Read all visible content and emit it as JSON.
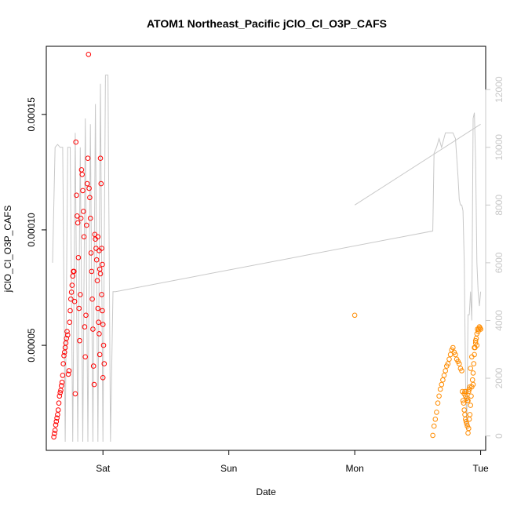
{
  "chart_data": {
    "type": "scatter",
    "title": "ATOM1 Northeast_Pacific jClO_Cl_O3P_CAFS",
    "xlabel": "Date",
    "ylabel": "jClO_Cl_O3P_CAFS",
    "x_ticks": [
      "Sat",
      "Sun",
      "Mon",
      "Tue"
    ],
    "x_tick_days": [
      1,
      2,
      3,
      4
    ],
    "xlim_days": [
      0.55,
      4.04
    ],
    "y_ticks": [
      "0.00005",
      "0.00010",
      "0.00015"
    ],
    "y_tick_values": [
      5e-05,
      0.0001,
      0.00015
    ],
    "ylim": [
      4.5e-06,
      0.0001795
    ],
    "y2_ticks": [
      "0",
      "2000",
      "4000",
      "6000",
      "8000",
      "10000",
      "12000"
    ],
    "y2_tick_values": [
      0,
      2000,
      4000,
      6000,
      8000,
      10000,
      12000
    ],
    "y2lim": [
      -500,
      13500
    ],
    "colors": {
      "series_a": "#ff0000",
      "series_b": "#ff8c00",
      "altitude": "#c8c8c8",
      "axis": "#000000",
      "right_axis": "#c8c8c8"
    },
    "series": [
      {
        "color": "#ff0000",
        "points": [
          [
            0.61,
            1.03e-05
          ],
          [
            0.615,
            1.18e-05
          ],
          [
            0.62,
            1.32e-05
          ],
          [
            0.625,
            1.55e-05
          ],
          [
            0.63,
            1.7e-05
          ],
          [
            0.635,
            1.85e-05
          ],
          [
            0.64,
            2e-05
          ],
          [
            0.645,
            2.2e-05
          ],
          [
            0.65,
            2.5e-05
          ],
          [
            0.655,
            2.8e-05
          ],
          [
            0.66,
            2.95e-05
          ],
          [
            0.665,
            3.05e-05
          ],
          [
            0.67,
            3.25e-05
          ],
          [
            0.675,
            3.4e-05
          ],
          [
            0.68,
            3.7e-05
          ],
          [
            0.685,
            4.2e-05
          ],
          [
            0.69,
            4.55e-05
          ],
          [
            0.695,
            4.7e-05
          ],
          [
            0.7,
            4.9e-05
          ],
          [
            0.705,
            5.1e-05
          ],
          [
            0.71,
            5.3e-05
          ],
          [
            0.715,
            5.6e-05
          ],
          [
            0.72,
            5.45e-05
          ],
          [
            0.725,
            3.75e-05
          ],
          [
            0.73,
            3.9e-05
          ],
          [
            0.735,
            6e-05
          ],
          [
            0.74,
            6.5e-05
          ],
          [
            0.745,
            7e-05
          ],
          [
            0.75,
            7.3e-05
          ],
          [
            0.755,
            7.6e-05
          ],
          [
            0.76,
            8e-05
          ],
          [
            0.765,
            8.2e-05
          ],
          [
            0.77,
            8.2e-05
          ],
          [
            0.775,
            6.9e-05
          ],
          [
            0.78,
            2.9e-05
          ],
          [
            0.785,
            0.000138
          ],
          [
            0.79,
            0.000115
          ],
          [
            0.795,
            0.000106
          ],
          [
            0.8,
            0.000103
          ],
          [
            0.805,
            8.8e-05
          ],
          [
            0.81,
            6.6e-05
          ],
          [
            0.815,
            5.2e-05
          ],
          [
            0.82,
            7.2e-05
          ],
          [
            0.825,
            0.000105
          ],
          [
            0.83,
            0.000126
          ],
          [
            0.835,
            0.000124
          ],
          [
            0.84,
            0.000117
          ],
          [
            0.845,
            0.000108
          ],
          [
            0.85,
            9.7e-05
          ],
          [
            0.855,
            5.8e-05
          ],
          [
            0.86,
            4.5e-05
          ],
          [
            0.865,
            6.3e-05
          ],
          [
            0.87,
            0.000102
          ],
          [
            0.875,
            0.00012
          ],
          [
            0.88,
            0.000131
          ],
          [
            0.885,
            0.000176
          ],
          [
            0.89,
            0.000118
          ],
          [
            0.895,
            0.000114
          ],
          [
            0.9,
            0.000105
          ],
          [
            0.905,
            9e-05
          ],
          [
            0.91,
            8.2e-05
          ],
          [
            0.915,
            7e-05
          ],
          [
            0.92,
            5.7e-05
          ],
          [
            0.925,
            4.1e-05
          ],
          [
            0.93,
            3.3e-05
          ],
          [
            0.935,
            9.8e-05
          ],
          [
            0.94,
            9.6e-05
          ],
          [
            0.945,
            9.2e-05
          ],
          [
            0.95,
            8.7e-05
          ],
          [
            0.955,
            7.8e-05
          ],
          [
            0.96,
            6.6e-05
          ],
          [
            0.965,
            6e-05
          ],
          [
            0.97,
            5.5e-05
          ],
          [
            0.975,
            4.6e-05
          ],
          [
            0.98,
            0.000131
          ],
          [
            0.985,
            0.00012
          ],
          [
            0.99,
            7.2e-05
          ],
          [
            0.995,
            6.5e-05
          ],
          [
            1.0,
            5.9e-05
          ],
          [
            1.005,
            5e-05
          ],
          [
            1.01,
            4.2e-05
          ],
          [
            0.99,
            9.2e-05
          ],
          [
            0.995,
            8.5e-05
          ],
          [
            0.98,
            8.1e-05
          ],
          [
            1.0,
            3.6e-05
          ],
          [
            0.96,
            9.7e-05
          ],
          [
            0.97,
            9.1e-05
          ],
          [
            0.975,
            8.3e-05
          ]
        ]
      },
      {
        "color": "#ff8c00",
        "points": [
          [
            3.0,
            6.3e-05
          ],
          [
            3.62,
            1.1e-05
          ],
          [
            3.63,
            1.5e-05
          ],
          [
            3.64,
            1.8e-05
          ],
          [
            3.65,
            2.1e-05
          ],
          [
            3.66,
            2.5e-05
          ],
          [
            3.67,
            2.8e-05
          ],
          [
            3.68,
            3.1e-05
          ],
          [
            3.69,
            3.3e-05
          ],
          [
            3.7,
            3.5e-05
          ],
          [
            3.71,
            3.7e-05
          ],
          [
            3.72,
            3.9e-05
          ],
          [
            3.73,
            4.1e-05
          ],
          [
            3.74,
            4.2e-05
          ],
          [
            3.75,
            4.4e-05
          ],
          [
            3.76,
            4.6e-05
          ],
          [
            3.77,
            4.8e-05
          ],
          [
            3.78,
            4.9e-05
          ],
          [
            3.79,
            4.7e-05
          ],
          [
            3.8,
            4.6e-05
          ],
          [
            3.81,
            4.4e-05
          ],
          [
            3.82,
            4.3e-05
          ],
          [
            3.83,
            4.2e-05
          ],
          [
            3.84,
            4e-05
          ],
          [
            3.85,
            3.9e-05
          ],
          [
            3.855,
            3e-05
          ],
          [
            3.86,
            2.6e-05
          ],
          [
            3.865,
            2.5e-05
          ],
          [
            3.87,
            2.2e-05
          ],
          [
            3.875,
            2e-05
          ],
          [
            3.88,
            1.8e-05
          ],
          [
            3.885,
            1.7e-05
          ],
          [
            3.89,
            1.6e-05
          ],
          [
            3.895,
            1.5e-05
          ],
          [
            3.9,
            1.2e-05
          ],
          [
            3.905,
            1.4e-05
          ],
          [
            3.91,
            1.8e-05
          ],
          [
            3.915,
            2e-05
          ],
          [
            3.92,
            2.4e-05
          ],
          [
            3.925,
            2.8e-05
          ],
          [
            3.93,
            3.2e-05
          ],
          [
            3.935,
            3.5e-05
          ],
          [
            3.94,
            3.8e-05
          ],
          [
            3.945,
            4.2e-05
          ],
          [
            3.95,
            4.6e-05
          ],
          [
            3.955,
            4.9e-05
          ],
          [
            3.96,
            5.1e-05
          ],
          [
            3.965,
            5.3e-05
          ],
          [
            3.97,
            5.5e-05
          ],
          [
            3.975,
            5.7e-05
          ],
          [
            3.98,
            5.6e-05
          ],
          [
            3.985,
            5.7e-05
          ],
          [
            3.99,
            5.8e-05
          ],
          [
            3.995,
            5.75e-05
          ],
          [
            4.0,
            5.7e-05
          ],
          [
            3.87,
            2.9e-05
          ],
          [
            3.875,
            3e-05
          ],
          [
            3.88,
            2.8e-05
          ],
          [
            3.885,
            3e-05
          ],
          [
            3.89,
            2.7e-05
          ],
          [
            3.895,
            2.6e-05
          ],
          [
            3.9,
            2.6e-05
          ],
          [
            3.905,
            3e-05
          ],
          [
            3.91,
            3.1e-05
          ],
          [
            3.915,
            3.2e-05
          ],
          [
            3.92,
            4e-05
          ],
          [
            3.93,
            4.5e-05
          ],
          [
            3.94,
            3.3e-05
          ],
          [
            3.95,
            4.9e-05
          ],
          [
            3.96,
            5.2e-05
          ],
          [
            3.97,
            5e-05
          ]
        ]
      }
    ],
    "altitude_line": {
      "color": "#c8c8c8",
      "points": [
        [
          0.6,
          6000
        ],
        [
          0.62,
          10000
        ],
        [
          0.64,
          10100
        ],
        [
          0.66,
          10000
        ],
        [
          0.68,
          10000
        ],
        [
          0.7,
          -200
        ],
        [
          0.72,
          10000
        ],
        [
          0.74,
          10000
        ],
        [
          0.76,
          -200
        ],
        [
          0.78,
          10500
        ],
        [
          0.8,
          -200
        ],
        [
          0.82,
          10000
        ],
        [
          0.84,
          -200
        ],
        [
          0.86,
          11000
        ],
        [
          0.88,
          -200
        ],
        [
          0.9,
          10800
        ],
        [
          0.92,
          -200
        ],
        [
          0.94,
          11500
        ],
        [
          0.96,
          -200
        ],
        [
          0.98,
          12200
        ],
        [
          1.0,
          -200
        ],
        [
          1.02,
          12500
        ],
        [
          1.04,
          12500
        ],
        [
          1.06,
          -200
        ],
        [
          1.08,
          5000
        ],
        [
          1.1,
          5000
        ],
        [
          3.62,
          7100
        ],
        [
          3.63,
          9800
        ],
        [
          3.65,
          10000
        ],
        [
          3.67,
          10300
        ],
        [
          3.69,
          10000
        ],
        [
          3.72,
          10500
        ],
        [
          3.75,
          10500
        ],
        [
          3.78,
          10500
        ],
        [
          3.8,
          10300
        ],
        [
          3.82,
          9000
        ],
        [
          3.83,
          8200
        ],
        [
          3.84,
          8000
        ],
        [
          3.85,
          8000
        ],
        [
          3.86,
          7800
        ],
        [
          3.87,
          6000
        ],
        [
          3.88,
          2000
        ],
        [
          3.89,
          200
        ],
        [
          3.9,
          4200
        ],
        [
          3.91,
          4200
        ],
        [
          3.92,
          5000
        ],
        [
          3.93,
          4000
        ],
        [
          3.94,
          11000
        ],
        [
          3.95,
          11200
        ],
        [
          3.96,
          9500
        ],
        [
          3.97,
          6000
        ],
        [
          3.98,
          5000
        ],
        [
          3.99,
          4500
        ],
        [
          4.0,
          5000
        ]
      ],
      "extra_segment": [
        [
          3.0,
          8000
        ],
        [
          4.0,
          10800
        ]
      ]
    }
  }
}
